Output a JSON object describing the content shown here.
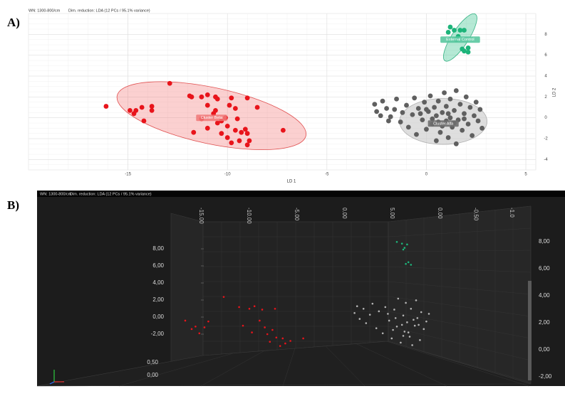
{
  "chart_data": [
    {
      "type": "scatter",
      "panel_label": "A)",
      "header": [
        "WN: 1300-800/cm",
        "Dim. reduction: LDA (12 PCs / 95.1% variance)"
      ],
      "x_label": "LD 1",
      "y_label": "LD 2",
      "xlim": [
        -20,
        5.5
      ],
      "xticks": [
        -15,
        -10,
        -5,
        0,
        5
      ],
      "ylim": [
        -5,
        10
      ],
      "yticks": [
        -4,
        -2,
        0,
        2,
        4,
        6,
        8
      ],
      "grid": true,
      "series": [
        {
          "name": "Cluster Beta",
          "color": "#e8141b",
          "x": [
            -16.1,
            -12.9,
            -14.9,
            -14.6,
            -14.7,
            -14.3,
            -14.2,
            -13.8,
            -13.8,
            -11.9,
            -11.8,
            -11.7,
            -11.3,
            -11.0,
            -10.6,
            -10.5,
            -11.0,
            -10.7,
            -10.6,
            -11.3,
            -11.0,
            -10.5,
            -10.1,
            -10.0,
            -9.9,
            -9.8,
            -9.6,
            -9.5,
            -10.3,
            -10.0,
            -9.8,
            -9.3,
            -9.1,
            -9.0,
            -9.4,
            -8.9,
            -9.0,
            -8.5,
            -9.6,
            -7.2,
            -10.3,
            -9.0
          ],
          "values": [
            1.1,
            3.3,
            0.7,
            0.7,
            0.4,
            1.0,
            -0.3,
            1.1,
            0.7,
            2.1,
            2.0,
            -1.4,
            2.0,
            2.2,
            2.0,
            1.8,
            1.2,
            0.4,
            0.7,
            -0.1,
            -1.0,
            -0.5,
            0,
            -0.8,
            1.2,
            1.9,
            0.9,
            -0.1,
            -1.5,
            -1.9,
            -2.4,
            -1.4,
            -1.1,
            -1.5,
            -2.2,
            -2.2,
            1.9,
            1.0,
            -1.2,
            -1.2,
            -0.3,
            -2.6
          ],
          "ellipse": {
            "center": [
              -10.8,
              0.2
            ],
            "rx": 4.85,
            "ry": 2.7,
            "angle": 12
          }
        },
        {
          "name": "Cluster Alfa",
          "color": "#5f5f5f",
          "x": [
            -2.6,
            -2.5,
            -2.3,
            -2.2,
            -2.0,
            -1.8,
            -1.6,
            -1.5,
            -1.3,
            -1.2,
            -1.0,
            -0.9,
            -0.7,
            -0.6,
            -0.5,
            -0.4,
            -0.2,
            -0.1,
            0,
            0.1,
            0.2,
            0.3,
            0.4,
            0.5,
            0.5,
            0.6,
            0.7,
            0.8,
            0.9,
            1.0,
            1.0,
            1.1,
            1.2,
            1.2,
            1.3,
            1.4,
            1.5,
            1.5,
            1.6,
            1.7,
            1.8,
            1.9,
            2.0,
            2.1,
            2.2,
            2.3,
            2.4,
            2.5,
            2.6,
            2.7,
            0.3,
            0.8,
            1.4,
            -0.3,
            1.1,
            0.0,
            1.9,
            0.6,
            -1.9,
            2.8
          ],
          "values": [
            1.3,
            0.6,
            0.2,
            1.6,
            0.9,
            0.1,
            0.8,
            1.8,
            -0.4,
            0.5,
            1.2,
            -0.9,
            0.3,
            1.9,
            -1.6,
            0.9,
            -0.2,
            1.5,
            -1.1,
            0.6,
            2.1,
            -0.6,
            1.0,
            -2.2,
            0.2,
            1.6,
            -1.4,
            0.5,
            2.4,
            -0.3,
            1.1,
            -1.9,
            0.0,
            1.8,
            -0.9,
            0.7,
            2.6,
            -2.5,
            -0.2,
            1.3,
            -1.2,
            0.4,
            2.0,
            -0.6,
            1.0,
            -1.7,
            0.2,
            1.5,
            -0.3,
            0.8,
            -0.1,
            -0.8,
            -0.5,
            0.4,
            0.4,
            0.8,
            -0.1,
            -0.4,
            -0.3,
            -1.0
          ],
          "ellipse": {
            "center": [
              0.85,
              -0.35
            ],
            "rx": 2.2,
            "ry": 2.2,
            "angle": 0
          }
        },
        {
          "name": "External Control",
          "color": "#1db47a",
          "x": [
            1.2,
            1.4,
            1.1,
            1.7,
            1.6,
            1.9,
            1.5,
            2.1,
            1.9,
            2.1,
            1.8
          ],
          "values": [
            8.7,
            8.4,
            8.2,
            8.4,
            7.8,
            8.4,
            7.5,
            6.7,
            6.4,
            6.3,
            6.6
          ],
          "ellipse": {
            "center": [
              1.7,
              7.7
            ],
            "rx": 1.4,
            "ry": 0.8,
            "angle": -57
          }
        }
      ]
    },
    {
      "type": "scatter3d",
      "panel_label": "B)",
      "header": [
        "WN: 1300-800/cm",
        "Dim. reduction: LDA (12 PCs / 95.1% variance)"
      ],
      "xticks": [
        {
          "value": -15,
          "label": "-15.00"
        },
        {
          "value": -10,
          "label": "-10.00"
        },
        {
          "value": -5,
          "label": "-5.00"
        },
        {
          "value": 0,
          "label": "0.00"
        },
        {
          "value": 5,
          "label": "5.00"
        }
      ],
      "depth_ticks": [
        {
          "value": 0,
          "label": "0.00"
        },
        {
          "value": -0.5,
          "label": "-0.50"
        },
        {
          "value": -1,
          "label": "-1.0"
        }
      ],
      "yticks": [
        {
          "value": 8,
          "label": "8,00"
        },
        {
          "value": 6,
          "label": "6,00"
        },
        {
          "value": 4,
          "label": "4,00"
        },
        {
          "value": 2,
          "label": "2,00"
        },
        {
          "value": 0,
          "label": "0,00"
        },
        {
          "value": -2,
          "label": "-2,00"
        }
      ],
      "zticks": [
        {
          "value": 0.5,
          "label": "0,50"
        },
        {
          "value": 0,
          "label": "0,00"
        }
      ],
      "series": [
        {
          "name": "Cluster Beta",
          "color": "#e8141b",
          "x": [
            -16,
            -15.5,
            -15.2,
            -14.9,
            -14.5,
            -14.2,
            -13,
            -11.8,
            -11.5,
            -11.0,
            -10.8,
            -10.6,
            -10.2,
            -10.0,
            -9.8,
            -9.6,
            -9.4,
            -9.2,
            -9.0,
            -8.9,
            -8.6,
            -8.4,
            -8.2,
            -7.8,
            -6.8
          ],
          "values": [
            -0.5,
            -1.5,
            -1.2,
            -2.0,
            -1.3,
            -0.6,
            2.3,
            1.1,
            -1.1,
            0.9,
            -1.9,
            1.2,
            -0.5,
            0.8,
            -1.3,
            -2.1,
            -3.0,
            -1.6,
            0.9,
            -2.5,
            -3.5,
            -2.6,
            -3.2,
            -2.9,
            -2.6
          ]
        },
        {
          "name": "External Control",
          "color": "#1db47a",
          "x": [
            0.5,
            0.9,
            1.1,
            1.3,
            1.0,
            1.4,
            1.6,
            1.2
          ],
          "values": [
            8.8,
            8.6,
            8.1,
            8.5,
            7.9,
            6.4,
            6.1,
            6.2
          ]
        },
        {
          "name": "Cluster Alfa",
          "color": "#b4b4b4",
          "x": [
            -2.8,
            -2.6,
            -2.4,
            -2.1,
            -1.9,
            -1.6,
            -1.4,
            -1.1,
            -0.9,
            -0.6,
            -0.4,
            -0.1,
            0.1,
            0.3,
            0.5,
            0.6,
            0.8,
            1.0,
            1.1,
            1.2,
            1.3,
            1.5,
            1.6,
            1.7,
            1.9,
            2.0,
            2.1,
            2.3,
            2.4,
            2.6,
            2.8,
            3.0,
            0.4,
            0.9,
            1.4,
            1.8,
            0.2,
            1.0,
            2.2,
            -0.2
          ],
          "values": [
            0.4,
            1.2,
            -0.3,
            0.9,
            -0.8,
            0.2,
            1.5,
            -1.4,
            0.6,
            -2.0,
            1.1,
            -0.5,
            -2.6,
            0.8,
            -1.2,
            2.1,
            -3.1,
            0.1,
            -1.8,
            1.6,
            -0.7,
            -2.4,
            0.9,
            -3.4,
            -1.1,
            1.9,
            -0.2,
            -2.8,
            0.5,
            -1.5,
            -0.6,
            0.3,
            -0.2,
            -1.0,
            -1.9,
            -0.4,
            -1.6,
            -2.3,
            -1.0,
            0.3
          ]
        }
      ]
    }
  ]
}
